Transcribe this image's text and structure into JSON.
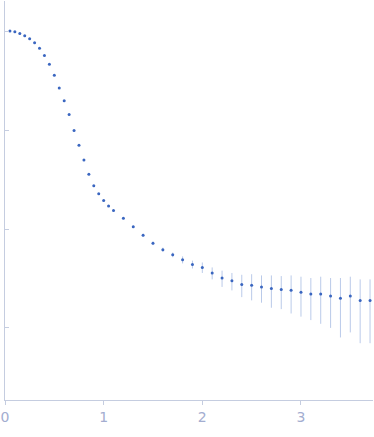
{
  "chart_data": {
    "type": "scatter",
    "x": [
      0.05,
      0.1,
      0.15,
      0.2,
      0.25,
      0.3,
      0.35,
      0.4,
      0.45,
      0.5,
      0.55,
      0.6,
      0.65,
      0.7,
      0.75,
      0.8,
      0.85,
      0.9,
      0.95,
      1.0,
      1.05,
      1.1,
      1.2,
      1.3,
      1.4,
      1.5,
      1.6,
      1.7,
      1.8,
      1.9,
      2.0,
      2.1,
      2.2,
      2.3,
      2.4,
      2.5,
      2.6,
      2.7,
      2.8,
      2.9,
      3.0,
      3.1,
      3.2,
      3.3,
      3.4,
      3.5,
      3.6,
      3.7
    ],
    "values": [
      1.02,
      1.0,
      0.96,
      0.912,
      0.85,
      0.776,
      0.68,
      0.575,
      0.47,
      0.363,
      0.27,
      0.2,
      0.145,
      0.1,
      0.071,
      0.0501,
      0.036,
      0.0275,
      0.0228,
      0.0195,
      0.0172,
      0.0155,
      0.0129,
      0.0106,
      0.0087,
      0.0072,
      0.0062,
      0.0055,
      0.0049,
      0.0044,
      0.0041,
      0.0036,
      0.0032,
      0.003,
      0.00275,
      0.0027,
      0.0026,
      0.0025,
      0.00245,
      0.0024,
      0.0023,
      0.0022,
      0.0022,
      0.0021,
      0.002,
      0.0021,
      0.0019,
      0.0019
    ],
    "errors": [
      0.01,
      0.01,
      0.01,
      0.008,
      0.007,
      0.006,
      0.005,
      0.004,
      0.003,
      0.002,
      0.0015,
      0.001,
      0.0008,
      0.0006,
      0.0005,
      0.0004,
      0.0003,
      0.0003,
      0.0003,
      0.0003,
      0.0003,
      0.0003,
      0.0003,
      0.0003,
      0.0003,
      0.0003,
      0.0003,
      0.0003,
      0.0004,
      0.0004,
      0.0005,
      0.0005,
      0.0006,
      0.0006,
      0.0007,
      0.0008,
      0.0008,
      0.0009,
      0.0009,
      0.001,
      0.001,
      0.001,
      0.0011,
      0.0011,
      0.0012,
      0.0012,
      0.0012,
      0.0012
    ],
    "color": "#3a66c0",
    "marker": "circle",
    "xlim": [
      0,
      3.73
    ],
    "xticks": [
      0,
      1,
      2,
      3
    ],
    "ylim": [
      0.000186,
      2.05
    ],
    "yticks": [
      0.001,
      0.01,
      0.1,
      1
    ],
    "log": "y",
    "grid": false,
    "tick_labels": "x"
  }
}
